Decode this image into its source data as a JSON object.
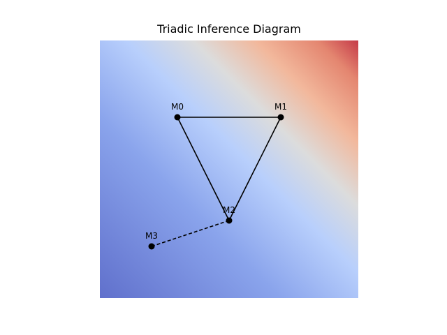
{
  "diagram": {
    "title": "Triadic Inference Diagram",
    "background": {
      "type": "gradient-field",
      "colormap": "coolwarm",
      "colors": {
        "low": "#6a78cf",
        "mid_low": "#aac4f8",
        "neutral": "#dddcdc",
        "mid_high": "#f3b497",
        "high": "#c9404a"
      }
    },
    "nodes": [
      {
        "id": "M0",
        "label": "M0"
      },
      {
        "id": "M1",
        "label": "M1"
      },
      {
        "id": "M2",
        "label": "M2"
      },
      {
        "id": "M3",
        "label": "M3"
      }
    ],
    "edges": [
      {
        "from": "M0",
        "to": "M1",
        "style": "solid"
      },
      {
        "from": "M1",
        "to": "M2",
        "style": "solid"
      },
      {
        "from": "M2",
        "to": "M0",
        "style": "solid"
      },
      {
        "from": "M2",
        "to": "M3",
        "style": "dashed"
      }
    ],
    "colors": {
      "edge": "#000000",
      "node": "#000000"
    }
  }
}
